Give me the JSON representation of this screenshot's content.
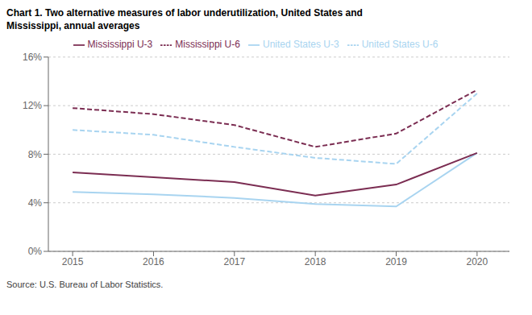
{
  "chart_data": {
    "type": "line",
    "title": "Chart 1. Two alternative measures of labor underutilization, United States and",
    "subtitle": "Mississippi,  annual averages",
    "annotations": [
      "Source: U.S. Bureau of Labor Statistics."
    ],
    "x": [
      2015,
      2016,
      2017,
      2018,
      2019,
      2020
    ],
    "xlim": [
      2014.7,
      2020.4
    ],
    "xticks": [
      2015,
      2016,
      2017,
      2018,
      2019,
      2020
    ],
    "ylim": [
      0,
      16
    ],
    "yticks": [
      {
        "value": 0,
        "label": "0%"
      },
      {
        "value": 4,
        "label": "4%"
      },
      {
        "value": 8,
        "label": "8%"
      },
      {
        "value": 12,
        "label": "12%"
      },
      {
        "value": 16,
        "label": "16%"
      }
    ],
    "grid": true,
    "legend": "top",
    "series": [
      {
        "name": "United States U-3",
        "color": "#a8d4f0",
        "line_style": "solid",
        "values": [
          4.9,
          4.7,
          4.4,
          3.9,
          3.7,
          8.1
        ]
      },
      {
        "name": "United States U-6",
        "color": "#a8d4f0",
        "line_style": "dashed",
        "values": [
          10.0,
          9.6,
          8.6,
          7.7,
          7.2,
          13.0
        ]
      },
      {
        "name": "Mississippi U-3",
        "color": "#7B2D52",
        "line_style": "solid",
        "values": [
          6.5,
          6.1,
          5.7,
          4.6,
          5.5,
          8.1
        ]
      },
      {
        "name": "Mississippi U-6",
        "color": "#7B2D52",
        "line_style": "dashed",
        "values": [
          11.8,
          11.3,
          10.4,
          8.6,
          9.7,
          13.3
        ]
      }
    ]
  }
}
